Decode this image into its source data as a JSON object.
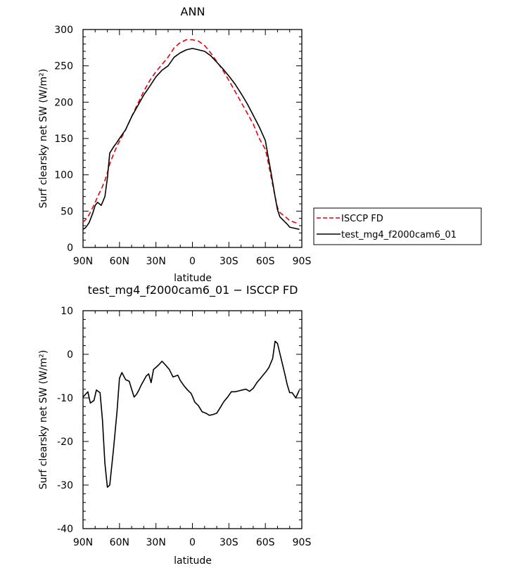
{
  "chart_data": [
    {
      "type": "line",
      "title": "ANN",
      "xlabel": "latitude",
      "ylabel": "Surf clearsky net SW (W/m²)",
      "x": [
        90,
        88,
        85,
        82,
        80,
        78,
        75,
        72,
        70,
        68,
        65,
        62,
        60,
        55,
        50,
        45,
        40,
        35,
        30,
        25,
        20,
        15,
        10,
        5,
        0,
        -5,
        -10,
        -15,
        -20,
        -25,
        -30,
        -35,
        -40,
        -45,
        -50,
        -55,
        -60,
        -62,
        -65,
        -68,
        -70,
        -72,
        -75,
        -78,
        -80,
        -85,
        -88
      ],
      "xticks": [
        "90N",
        "60N",
        "30N",
        "0",
        "30S",
        "60S",
        "90S"
      ],
      "xlim": [
        90,
        -90
      ],
      "ylim": [
        0,
        300
      ],
      "yticks": [
        0,
        50,
        100,
        150,
        200,
        250,
        300
      ],
      "legend_position": "right",
      "series": [
        {
          "name": "ISCCP FD",
          "style": "dashed",
          "color": "#e8000b",
          "values": [
            35,
            38,
            45,
            55,
            62,
            70,
            80,
            92,
            103,
            115,
            128,
            140,
            146,
            162,
            180,
            198,
            215,
            230,
            242,
            252,
            262,
            275,
            282,
            286,
            286,
            284,
            278,
            268,
            256,
            244,
            230,
            215,
            200,
            185,
            170,
            150,
            135,
            120,
            95,
            70,
            55,
            48,
            44,
            40,
            37,
            34,
            33
          ]
        },
        {
          "name": "test_mg4_f2000cam6_01",
          "style": "solid",
          "color": "#000000",
          "values": [
            25,
            27,
            34,
            47,
            58,
            62,
            58,
            70,
            95,
            130,
            138,
            145,
            150,
            162,
            180,
            195,
            210,
            222,
            235,
            244,
            250,
            262,
            268,
            272,
            274,
            272,
            270,
            264,
            255,
            246,
            236,
            225,
            212,
            198,
            182,
            166,
            147,
            128,
            100,
            70,
            52,
            42,
            37,
            32,
            28,
            26,
            25
          ]
        }
      ]
    },
    {
      "type": "line",
      "title": "test_mg4_f2000cam6_01 − ISCCP FD",
      "xlabel": "latitude",
      "ylabel": "Surf clearsky net SW (W/m²)",
      "x": [
        90,
        88,
        86,
        84,
        81,
        79,
        76,
        74,
        72,
        70,
        68,
        65,
        62,
        60,
        58,
        55,
        52,
        50,
        48,
        46,
        44,
        42,
        40,
        38,
        36,
        34,
        32,
        30,
        28,
        25,
        22,
        19,
        16,
        12,
        10,
        7,
        4,
        1,
        -2,
        -5,
        -8,
        -11,
        -14,
        -17,
        -20,
        -23,
        -26,
        -29,
        -32,
        -35,
        -38,
        -41,
        -44,
        -47,
        -50,
        -53,
        -56,
        -59,
        -61,
        -63,
        -66,
        -68,
        -70,
        -73,
        -76,
        -78,
        -80,
        -82,
        -85,
        -88
      ],
      "xticks": [
        "90N",
        "60N",
        "30N",
        "0",
        "30S",
        "60S",
        "90S"
      ],
      "xlim": [
        90,
        -90
      ],
      "ylim": [
        -40,
        10
      ],
      "yticks": [
        -40,
        -30,
        -20,
        -10,
        0,
        10
      ],
      "series": [
        {
          "name": "test_mg4_f2000cam6_01 − ISCCP FD",
          "style": "solid",
          "color": "#000000",
          "values": [
            -9.8,
            -9.2,
            -8.6,
            -11.2,
            -10.6,
            -8.2,
            -8.8,
            -15,
            -25,
            -30.5,
            -30,
            -22,
            -13,
            -5.5,
            -4.2,
            -5.8,
            -6.2,
            -8,
            -9.8,
            -9.2,
            -8.2,
            -7,
            -6,
            -5,
            -4.5,
            -6.5,
            -3.5,
            -3,
            -2.5,
            -1.6,
            -2.5,
            -3.5,
            -5.2,
            -4.8,
            -6,
            -7.2,
            -8.2,
            -9,
            -11,
            -11.8,
            -13.2,
            -13.5,
            -14,
            -13.8,
            -13.5,
            -12.2,
            -10.8,
            -9.8,
            -8.6,
            -8.6,
            -8.4,
            -8.2,
            -8,
            -8.5,
            -7.8,
            -6.5,
            -5.5,
            -4.5,
            -3.8,
            -3,
            -1,
            3,
            2.5,
            -1,
            -4.5,
            -7,
            -8.8,
            -8.8,
            -10,
            -8.2
          ]
        }
      ]
    }
  ]
}
